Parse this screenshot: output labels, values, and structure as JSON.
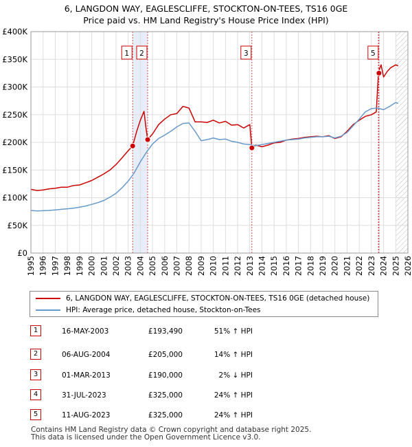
{
  "title_line1": "6, LANGDON WAY, EAGLESCLIFFE, STOCKTON-ON-TEES, TS16 0GE",
  "title_line2": "Price paid vs. HM Land Registry's House Price Index (HPI)",
  "legend": {
    "property": "6, LANGDON WAY, EAGLESCLIFFE, STOCKTON-ON-TEES, TS16 0GE (detached house)",
    "hpi": "HPI: Average price, detached house, Stockton-on-Tees"
  },
  "events": [
    {
      "num": "1",
      "date": "16-MAY-2003",
      "price": "£193,490",
      "hpi": "51% ↑ HPI"
    },
    {
      "num": "2",
      "date": "06-AUG-2004",
      "price": "£205,000",
      "hpi": "14% ↑ HPI"
    },
    {
      "num": "3",
      "date": "01-MAR-2013",
      "price": "£190,000",
      "hpi": "2% ↓ HPI"
    },
    {
      "num": "4",
      "date": "31-JUL-2023",
      "price": "£325,000",
      "hpi": "24% ↑ HPI"
    },
    {
      "num": "5",
      "date": "11-AUG-2023",
      "price": "£325,000",
      "hpi": "24% ↑ HPI"
    }
  ],
  "footer_line1": "Contains HM Land Registry data © Crown copyright and database right 2025.",
  "footer_line2": "This data is licensed under the Open Government Licence v3.0.",
  "colors": {
    "property": "#cc0000",
    "hpi": "#6699cc",
    "shade": "#e8eef8",
    "grid": "#dddddd"
  },
  "chart_data": {
    "type": "line",
    "title": "6, LANGDON WAY, EAGLESCLIFFE, STOCKTON-ON-TEES, TS16 0GE — Price paid vs. HM Land Registry's House Price Index (HPI)",
    "xlabel": "",
    "ylabel": "",
    "xlim": [
      1995,
      2026
    ],
    "ylim": [
      0,
      400000
    ],
    "y_ticks": [
      0,
      50000,
      100000,
      150000,
      200000,
      250000,
      300000,
      350000,
      400000
    ],
    "y_tick_labels": [
      "£0",
      "£50K",
      "£100K",
      "£150K",
      "£200K",
      "£250K",
      "£300K",
      "£350K",
      "£400K"
    ],
    "x_ticks": [
      1995,
      1996,
      1997,
      1998,
      1999,
      2000,
      2001,
      2002,
      2003,
      2004,
      2005,
      2006,
      2007,
      2008,
      2009,
      2010,
      2011,
      2012,
      2013,
      2014,
      2015,
      2016,
      2017,
      2018,
      2019,
      2020,
      2021,
      2022,
      2023,
      2024,
      2025,
      2026
    ],
    "x_tick_labels": [
      "1995",
      "1996",
      "1997",
      "1998",
      "1999",
      "2000",
      "2001",
      "2002",
      "2003",
      "2004",
      "2005",
      "2006",
      "2007",
      "2008",
      "2009",
      "2010",
      "2011",
      "2012",
      "2013",
      "2014",
      "2015",
      "2016",
      "2017",
      "2018",
      "2019",
      "2020",
      "2021",
      "2022",
      "2023",
      "2024",
      "2025",
      "2026"
    ],
    "shaded_spans": [
      [
        2003.37,
        2004.6
      ],
      [
        2023.58,
        2023.62
      ]
    ],
    "hatch_from": 2025.0,
    "series": [
      {
        "name": "6, LANGDON WAY, EAGLESCLIFFE, STOCKTON-ON-TEES, TS16 0GE (detached house)",
        "x": [
          1995.0,
          1995.5,
          1996.0,
          1996.5,
          1997.0,
          1997.5,
          1998.0,
          1998.5,
          1999.0,
          1999.5,
          2000.0,
          2000.5,
          2001.0,
          2001.5,
          2002.0,
          2002.5,
          2003.0,
          2003.37,
          2003.7,
          2004.0,
          2004.3,
          2004.45,
          2004.6,
          2005.0,
          2005.5,
          2006.0,
          2006.5,
          2007.0,
          2007.5,
          2008.0,
          2008.5,
          2009.0,
          2009.5,
          2010.0,
          2010.5,
          2011.0,
          2011.5,
          2012.0,
          2012.5,
          2013.0,
          2013.17,
          2013.5,
          2014.0,
          2014.5,
          2015.0,
          2015.5,
          2016.0,
          2016.5,
          2017.0,
          2017.5,
          2018.0,
          2018.5,
          2019.0,
          2019.5,
          2020.0,
          2020.5,
          2021.0,
          2021.5,
          2022.0,
          2022.5,
          2023.0,
          2023.4,
          2023.58,
          2023.62,
          2023.8,
          2024.0,
          2024.3,
          2024.6,
          2025.0,
          2025.2
        ],
        "values": [
          115000,
          113000,
          114000,
          116000,
          117000,
          119000,
          119000,
          122000,
          123000,
          127000,
          131000,
          137000,
          143000,
          150000,
          160000,
          172000,
          185000,
          193490,
          220000,
          240000,
          256000,
          228000,
          205000,
          215000,
          232000,
          242000,
          250000,
          252000,
          265000,
          262000,
          237000,
          237000,
          236000,
          240000,
          235000,
          238000,
          231000,
          232000,
          226000,
          232000,
          190000,
          195000,
          192000,
          195000,
          199000,
          200000,
          204000,
          206000,
          207000,
          209000,
          210000,
          211000,
          210000,
          212000,
          207000,
          210000,
          220000,
          232000,
          240000,
          247000,
          250000,
          255000,
          325000,
          330000,
          340000,
          318000,
          328000,
          335000,
          340000,
          338000
        ]
      },
      {
        "name": "HPI: Average price, detached house, Stockton-on-Tees",
        "x": [
          1995.0,
          1995.5,
          1996.0,
          1996.5,
          1997.0,
          1997.5,
          1998.0,
          1998.5,
          1999.0,
          1999.5,
          2000.0,
          2000.5,
          2001.0,
          2001.5,
          2002.0,
          2002.5,
          2003.0,
          2003.5,
          2004.0,
          2004.5,
          2005.0,
          2005.5,
          2006.0,
          2006.5,
          2007.0,
          2007.5,
          2008.0,
          2008.5,
          2009.0,
          2009.5,
          2010.0,
          2010.5,
          2011.0,
          2011.5,
          2012.0,
          2012.5,
          2013.0,
          2013.5,
          2014.0,
          2014.5,
          2015.0,
          2015.5,
          2016.0,
          2016.5,
          2017.0,
          2017.5,
          2018.0,
          2018.5,
          2019.0,
          2019.5,
          2020.0,
          2020.5,
          2021.0,
          2021.5,
          2022.0,
          2022.5,
          2023.0,
          2023.5,
          2024.0,
          2024.5,
          2025.0,
          2025.2
        ],
        "values": [
          77000,
          76000,
          76500,
          77000,
          78000,
          79000,
          80000,
          81000,
          83000,
          85000,
          88000,
          91000,
          95000,
          101000,
          108000,
          118000,
          130000,
          145000,
          165000,
          182000,
          197000,
          207000,
          213000,
          220000,
          228000,
          234000,
          235000,
          220000,
          203000,
          205000,
          208000,
          205000,
          206000,
          202000,
          200000,
          197000,
          196000,
          194000,
          196000,
          198000,
          200000,
          202000,
          204000,
          205000,
          206000,
          208000,
          209000,
          210000,
          210000,
          211000,
          208000,
          211000,
          218000,
          230000,
          242000,
          255000,
          261000,
          262000,
          259000,
          265000,
          272000,
          270000
        ]
      }
    ],
    "markers": [
      {
        "label": "1",
        "x": 2003.37,
        "y": 193490
      },
      {
        "label": "2",
        "x": 2004.6,
        "y": 205000
      },
      {
        "label": "3",
        "x": 2013.17,
        "y": 190000
      },
      {
        "label": "4",
        "x": 2023.58,
        "y": 325000
      },
      {
        "label": "5",
        "x": 2023.62,
        "y": 325000
      }
    ],
    "marker_labels_shown": [
      "1",
      "2",
      "3",
      "5"
    ]
  }
}
